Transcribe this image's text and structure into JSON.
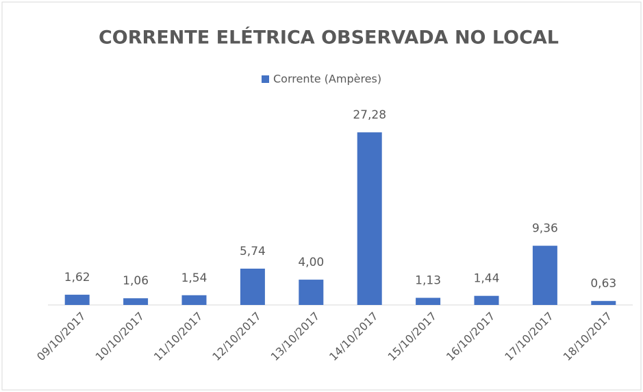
{
  "chart_data": {
    "type": "bar",
    "title": "CORRENTE ELÉTRICA OBSERVADA NO LOCAL",
    "categories": [
      "09/10/2017",
      "10/10/2017",
      "11/10/2017",
      "12/10/2017",
      "13/10/2017",
      "14/10/2017",
      "15/10/2017",
      "16/10/2017",
      "17/10/2017",
      "18/10/2017"
    ],
    "series": [
      {
        "name": "Corrente (Ampères)",
        "color": "#4472c4",
        "values": [
          1.62,
          1.06,
          1.54,
          5.74,
          4.0,
          27.28,
          1.13,
          1.44,
          9.36,
          0.63
        ],
        "value_labels": [
          "1,62",
          "1,06",
          "1,54",
          "5,74",
          "4,00",
          "27,28",
          "1,13",
          "1,44",
          "9,36",
          "0,63"
        ]
      }
    ],
    "ylim": [
      0,
      30
    ],
    "legend": "top"
  }
}
